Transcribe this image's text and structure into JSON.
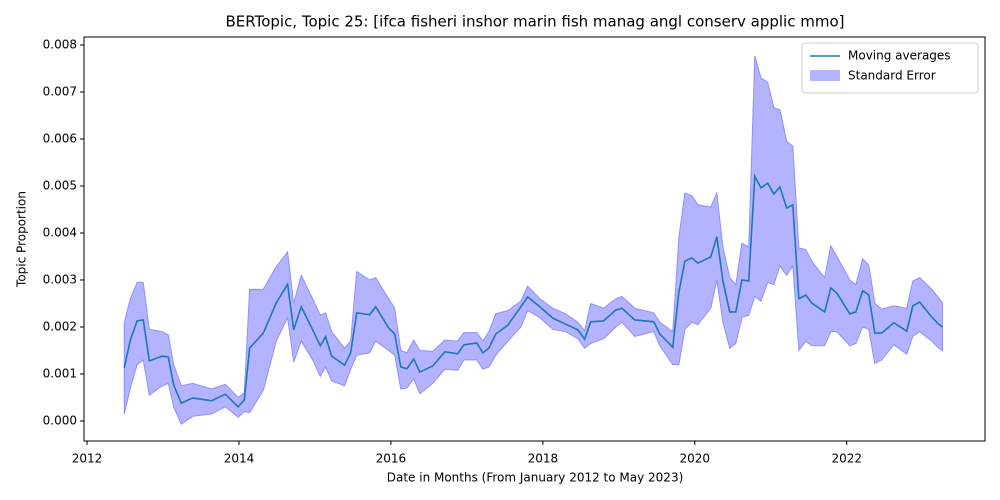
{
  "chart_data": {
    "type": "line",
    "title": "BERTopic, Topic 25: [ifca fisheri inshor marin fish manag angl conserv applic mmo]",
    "xlabel": "Date in Months (From January 2012 to May 2023)",
    "ylabel": "Topic Proportion",
    "legend": "upper right",
    "xlim": [
      2011.96,
      2023.82
    ],
    "ylim": [
      -0.000426,
      0.00817
    ],
    "xticks": [
      2012,
      2014,
      2016,
      2018,
      2020,
      2022
    ],
    "yticks": [
      {
        "value": 0,
        "label": "0.000"
      },
      {
        "value": 0.001,
        "label": "0.001"
      },
      {
        "value": 0.002,
        "label": "0.002"
      },
      {
        "value": 0.003,
        "label": "0.003"
      },
      {
        "value": 0.004,
        "label": "0.004"
      },
      {
        "value": 0.005,
        "label": "0.005"
      },
      {
        "value": 0.006,
        "label": "0.006"
      },
      {
        "value": 0.007,
        "label": "0.007"
      },
      {
        "value": 0.008,
        "label": "0.008"
      }
    ],
    "x": [
      2012.49,
      2012.57,
      2012.66,
      2012.74,
      2012.82,
      2012.99,
      2013.07,
      2013.14,
      2013.24,
      2013.39,
      2013.64,
      2013.82,
      2013.99,
      2014.07,
      2014.14,
      2014.32,
      2014.49,
      2014.64,
      2014.72,
      2014.82,
      2014.97,
      2015.07,
      2015.14,
      2015.22,
      2015.39,
      2015.47,
      2015.55,
      2015.72,
      2015.8,
      2015.97,
      2016.05,
      2016.13,
      2016.21,
      2016.3,
      2016.38,
      2016.55,
      2016.71,
      2016.88,
      2016.96,
      2017.13,
      2017.21,
      2017.29,
      2017.38,
      2017.54,
      2017.71,
      2017.8,
      2017.96,
      2018.13,
      2018.3,
      2018.46,
      2018.55,
      2018.63,
      2018.8,
      2018.96,
      2019.04,
      2019.21,
      2019.46,
      2019.54,
      2019.71,
      2019.79,
      2019.87,
      2019.96,
      2020.04,
      2020.21,
      2020.29,
      2020.37,
      2020.46,
      2020.54,
      2020.62,
      2020.71,
      2020.79,
      2020.87,
      2020.96,
      2021.04,
      2021.12,
      2021.21,
      2021.29,
      2021.37,
      2021.46,
      2021.54,
      2021.71,
      2021.79,
      2021.87,
      2022.04,
      2022.12,
      2022.21,
      2022.29,
      2022.37,
      2022.46,
      2022.62,
      2022.79,
      2022.87,
      2022.96,
      2023.12,
      2023.21,
      2023.26
    ],
    "series": [
      {
        "name": "Moving averages",
        "color": "#1f77b4",
        "values": [
          0.00113,
          0.00172,
          0.00213,
          0.00215,
          0.00128,
          0.00138,
          0.00136,
          0.00077,
          0.00038,
          0.00049,
          0.00043,
          0.00057,
          0.0003,
          0.00045,
          0.00155,
          0.00187,
          0.00251,
          0.00291,
          0.00194,
          0.00243,
          0.00194,
          0.0016,
          0.00179,
          0.00138,
          0.00119,
          0.00145,
          0.0023,
          0.00226,
          0.00243,
          0.00198,
          0.00185,
          0.00115,
          0.00111,
          0.00132,
          0.00104,
          0.00117,
          0.00147,
          0.00143,
          0.00162,
          0.00166,
          0.00145,
          0.00155,
          0.00185,
          0.00204,
          0.00243,
          0.00264,
          0.00243,
          0.00219,
          0.00206,
          0.00194,
          0.00174,
          0.00211,
          0.00213,
          0.00236,
          0.0024,
          0.00215,
          0.00211,
          0.00185,
          0.00157,
          0.00274,
          0.0034,
          0.00347,
          0.00336,
          0.00349,
          0.00392,
          0.00298,
          0.00232,
          0.00232,
          0.003,
          0.00298,
          0.00521,
          0.00496,
          0.00506,
          0.00483,
          0.00498,
          0.00453,
          0.0046,
          0.0026,
          0.00268,
          0.00251,
          0.00232,
          0.00283,
          0.00272,
          0.00228,
          0.00232,
          0.00277,
          0.00268,
          0.00187,
          0.00187,
          0.00209,
          0.00191,
          0.00245,
          0.00253,
          0.00221,
          0.00206,
          0.002
        ]
      },
      {
        "name": "Standard Error",
        "color": "#b3b3ff",
        "lower": [
          0.00015,
          0.0007,
          0.0012,
          0.0013,
          0.00055,
          0.00075,
          0.0008,
          0.0003,
          -7e-05,
          0.0001,
          0.00015,
          0.0003,
          8e-05,
          0.0002,
          0.00018,
          0.00065,
          0.0017,
          0.0022,
          0.00125,
          0.0017,
          0.0013,
          0.00095,
          0.00115,
          0.00085,
          0.00075,
          0.0011,
          0.0014,
          0.00145,
          0.0017,
          0.0015,
          0.0014,
          0.00068,
          0.0007,
          0.0009,
          0.00058,
          0.0008,
          0.0011,
          0.00108,
          0.0013,
          0.0013,
          0.0011,
          0.00115,
          0.0014,
          0.0017,
          0.002,
          0.00235,
          0.0022,
          0.00195,
          0.0019,
          0.00175,
          0.00155,
          0.00165,
          0.00175,
          0.002,
          0.0021,
          0.0018,
          0.0019,
          0.0016,
          0.0012,
          0.0012,
          0.00195,
          0.0021,
          0.00205,
          0.0024,
          0.003,
          0.0021,
          0.00155,
          0.00165,
          0.0022,
          0.00225,
          0.00265,
          0.00255,
          0.00295,
          0.0029,
          0.0033,
          0.0031,
          0.0033,
          0.0015,
          0.0017,
          0.0016,
          0.0016,
          0.0019,
          0.0019,
          0.0016,
          0.00165,
          0.002,
          0.00195,
          0.00122,
          0.0013,
          0.00162,
          0.00142,
          0.0018,
          0.0019,
          0.0017,
          0.00155,
          0.0015
        ],
        "upper": [
          0.0021,
          0.0026,
          0.00295,
          0.00295,
          0.00195,
          0.0019,
          0.00183,
          0.0012,
          0.00075,
          0.0008,
          0.00068,
          0.00078,
          0.0005,
          0.0006,
          0.0028,
          0.0028,
          0.00328,
          0.0036,
          0.0025,
          0.0031,
          0.0026,
          0.00225,
          0.0023,
          0.0019,
          0.00155,
          0.0017,
          0.00318,
          0.003,
          0.00305,
          0.0026,
          0.0024,
          0.0015,
          0.00145,
          0.00172,
          0.0015,
          0.00148,
          0.00172,
          0.0017,
          0.00188,
          0.00188,
          0.0017,
          0.0019,
          0.00228,
          0.00235,
          0.00255,
          0.00287,
          0.0026,
          0.0024,
          0.00228,
          0.0021,
          0.00192,
          0.0025,
          0.0024,
          0.0026,
          0.00265,
          0.0024,
          0.0023,
          0.0021,
          0.0019,
          0.0039,
          0.00485,
          0.0048,
          0.0046,
          0.00455,
          0.00485,
          0.0037,
          0.00305,
          0.0029,
          0.00378,
          0.0037,
          0.00777,
          0.0073,
          0.0072,
          0.00667,
          0.00662,
          0.00595,
          0.00585,
          0.00368,
          0.00365,
          0.0034,
          0.00305,
          0.00373,
          0.0035,
          0.003,
          0.0029,
          0.00345,
          0.00332,
          0.0025,
          0.00238,
          0.00245,
          0.0024,
          0.00298,
          0.00305,
          0.0028,
          0.00262,
          0.00252
        ]
      }
    ]
  }
}
